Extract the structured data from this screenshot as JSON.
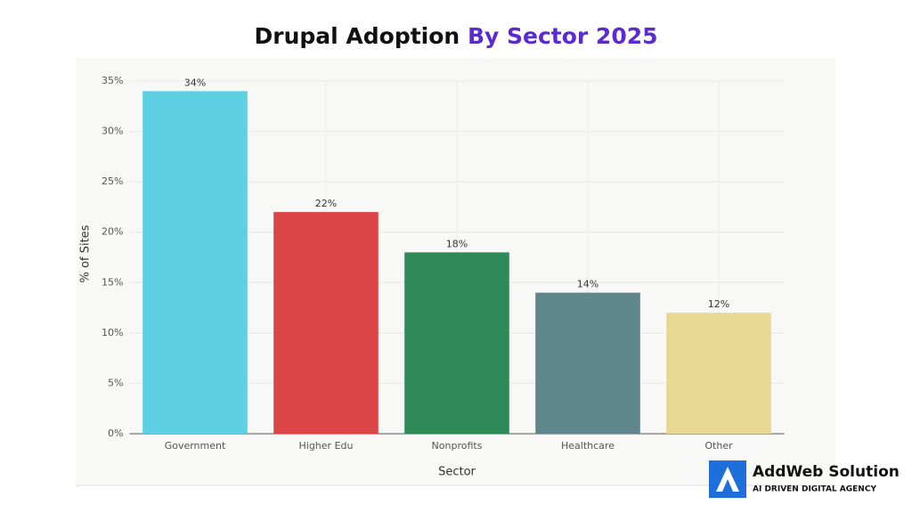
{
  "chart_data": {
    "type": "bar",
    "title": "Drupal Adoption",
    "title_highlight": "By Sector 2025",
    "x_label": "Sector",
    "y_label": "% of Sites",
    "categories": [
      "Government",
      "Higher Edu",
      "Nonprofits",
      "Healthcare",
      "Other"
    ],
    "values": [
      34,
      22,
      18,
      14,
      12
    ],
    "value_labels": [
      "34%",
      "22%",
      "18%",
      "14%",
      "12%"
    ],
    "colors": [
      "#5dd0e3",
      "#db4545",
      "#2e8a57",
      "#5e868c",
      "#e9d894"
    ],
    "ylim": [
      0,
      35
    ],
    "yticks": [
      {
        "value": 0,
        "label": "0%"
      },
      {
        "value": 5,
        "label": "5%"
      },
      {
        "value": 10,
        "label": "10%"
      },
      {
        "value": 15,
        "label": "15%"
      },
      {
        "value": 20,
        "label": "20%"
      },
      {
        "value": 25,
        "label": "25%"
      },
      {
        "value": 30,
        "label": "30%"
      },
      {
        "value": 35,
        "label": "35%"
      }
    ],
    "grid": true
  },
  "branding": {
    "name": "AddWeb Solution",
    "tagline": "AI DRIVEN DIGITAL AGENCY"
  }
}
